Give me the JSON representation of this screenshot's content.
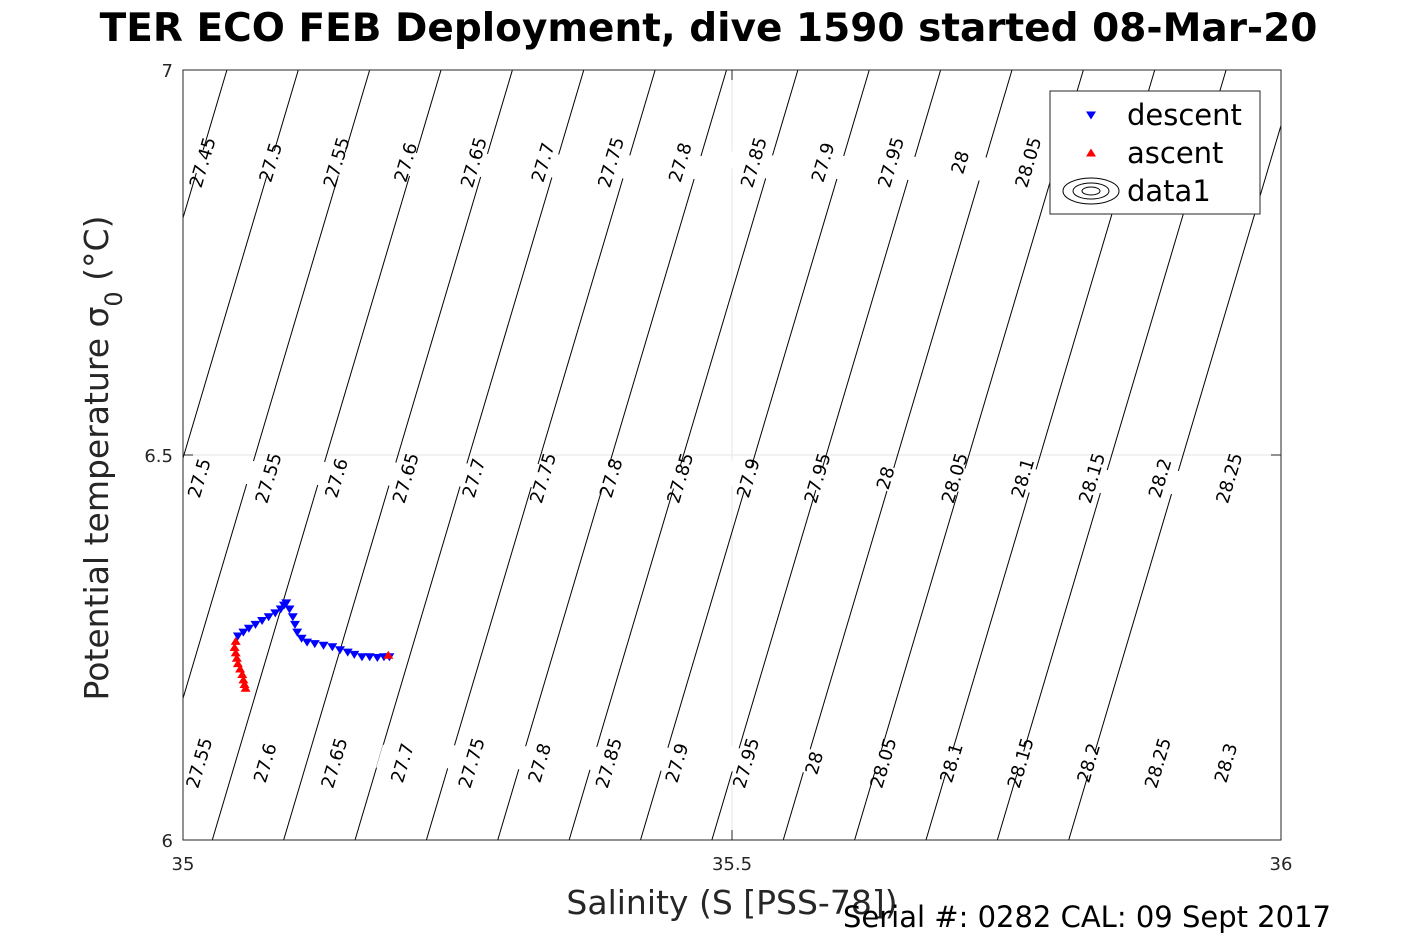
{
  "chart_data": {
    "type": "scatter",
    "title": "TER ECO FEB Deployment, dive 1590 started 08-Mar-20",
    "xlabel": "Salinity (S [PSS-78])",
    "ylabel": "Potential temperature σ",
    "ylabel_sub": "0",
    "ylabel_unit": "(°C)",
    "xlim": [
      35,
      36
    ],
    "ylim": [
      6,
      7
    ],
    "xticks": [
      "35",
      "35.5",
      "36"
    ],
    "yticks": [
      "6",
      "6.5",
      "7"
    ],
    "grid": true,
    "legend": {
      "position": "top-right",
      "entries": [
        "descent",
        "ascent",
        "data1"
      ]
    },
    "colors": {
      "descent": "#0000ff",
      "ascent": "#ff0000",
      "contour": "#000000"
    },
    "isopycnals": {
      "slope": 4.8,
      "start_salinity_at_7C": [
        34.98,
        35.04,
        35.105,
        35.17,
        35.235,
        35.3,
        35.365,
        35.43,
        35.495,
        35.56,
        35.625,
        35.69,
        35.755,
        35.82,
        35.885,
        35.95,
        36.015
      ]
    },
    "contour_labels": [
      {
        "text": "27.45",
        "s": 35.018,
        "t": 6.88
      },
      {
        "text": "27.5",
        "s": 35.08,
        "t": 6.88
      },
      {
        "text": "27.55",
        "s": 35.14,
        "t": 6.88
      },
      {
        "text": "27.6",
        "s": 35.203,
        "t": 6.88
      },
      {
        "text": "27.65",
        "s": 35.265,
        "t": 6.88
      },
      {
        "text": "27.7",
        "s": 35.328,
        "t": 6.88
      },
      {
        "text": "27.75",
        "s": 35.39,
        "t": 6.88
      },
      {
        "text": "27.8",
        "s": 35.453,
        "t": 6.88
      },
      {
        "text": "27.85",
        "s": 35.52,
        "t": 6.88
      },
      {
        "text": "27.9",
        "s": 35.583,
        "t": 6.88
      },
      {
        "text": "27.95",
        "s": 35.645,
        "t": 6.88
      },
      {
        "text": "28",
        "s": 35.708,
        "t": 6.88
      },
      {
        "text": "28.05",
        "s": 35.77,
        "t": 6.88
      },
      {
        "text": "27.5",
        "s": 35.015,
        "t": 6.47
      },
      {
        "text": "27.55",
        "s": 35.078,
        "t": 6.47
      },
      {
        "text": "27.6",
        "s": 35.14,
        "t": 6.47
      },
      {
        "text": "27.65",
        "s": 35.203,
        "t": 6.47
      },
      {
        "text": "27.7",
        "s": 35.265,
        "t": 6.47
      },
      {
        "text": "27.75",
        "s": 35.328,
        "t": 6.47
      },
      {
        "text": "27.8",
        "s": 35.39,
        "t": 6.47
      },
      {
        "text": "27.85",
        "s": 35.453,
        "t": 6.47
      },
      {
        "text": "27.9",
        "s": 35.515,
        "t": 6.47
      },
      {
        "text": "27.95",
        "s": 35.578,
        "t": 6.47
      },
      {
        "text": "28",
        "s": 35.64,
        "t": 6.47
      },
      {
        "text": "28.05",
        "s": 35.703,
        "t": 6.47
      },
      {
        "text": "28.1",
        "s": 35.765,
        "t": 6.47
      },
      {
        "text": "28.15",
        "s": 35.828,
        "t": 6.47
      },
      {
        "text": "28.2",
        "s": 35.89,
        "t": 6.47
      },
      {
        "text": "28.25",
        "s": 35.953,
        "t": 6.47
      },
      {
        "text": "27.55",
        "s": 35.015,
        "t": 6.1
      },
      {
        "text": "27.6",
        "s": 35.075,
        "t": 6.1
      },
      {
        "text": "27.65",
        "s": 35.138,
        "t": 6.1
      },
      {
        "text": "27.7",
        "s": 35.2,
        "t": 6.1
      },
      {
        "text": "27.75",
        "s": 35.263,
        "t": 6.1
      },
      {
        "text": "27.8",
        "s": 35.325,
        "t": 6.1
      },
      {
        "text": "27.85",
        "s": 35.388,
        "t": 6.1
      },
      {
        "text": "27.9",
        "s": 35.45,
        "t": 6.1
      },
      {
        "text": "27.95",
        "s": 35.513,
        "t": 6.1
      },
      {
        "text": "28",
        "s": 35.575,
        "t": 6.1
      },
      {
        "text": "28.05",
        "s": 35.638,
        "t": 6.1
      },
      {
        "text": "28.1",
        "s": 35.7,
        "t": 6.1
      },
      {
        "text": "28.15",
        "s": 35.763,
        "t": 6.1
      },
      {
        "text": "28.2",
        "s": 35.825,
        "t": 6.1
      },
      {
        "text": "28.25",
        "s": 35.888,
        "t": 6.1
      },
      {
        "text": "28.3",
        "s": 35.95,
        "t": 6.1
      }
    ],
    "series": [
      {
        "name": "descent",
        "marker": "triangle-down",
        "points": [
          [
            35.05,
            6.265
          ],
          [
            35.055,
            6.27
          ],
          [
            35.06,
            6.275
          ],
          [
            35.066,
            6.28
          ],
          [
            35.072,
            6.285
          ],
          [
            35.078,
            6.29
          ],
          [
            35.084,
            6.295
          ],
          [
            35.089,
            6.3
          ],
          [
            35.092,
            6.305
          ],
          [
            35.094,
            6.308
          ],
          [
            35.097,
            6.3
          ],
          [
            35.1,
            6.29
          ],
          [
            35.102,
            6.28
          ],
          [
            35.104,
            6.27
          ],
          [
            35.108,
            6.262
          ],
          [
            35.113,
            6.257
          ],
          [
            35.12,
            6.255
          ],
          [
            35.128,
            6.253
          ],
          [
            35.136,
            6.251
          ],
          [
            35.143,
            6.247
          ],
          [
            35.15,
            6.244
          ],
          [
            35.156,
            6.241
          ],
          [
            35.163,
            6.238
          ],
          [
            35.17,
            6.238
          ],
          [
            35.177,
            6.237
          ],
          [
            35.183,
            6.238
          ],
          [
            35.188,
            6.238
          ]
        ]
      },
      {
        "name": "ascent",
        "marker": "triangle-up",
        "points": [
          [
            35.048,
            6.258
          ],
          [
            35.047,
            6.25
          ],
          [
            35.048,
            6.243
          ],
          [
            35.049,
            6.236
          ],
          [
            35.05,
            6.229
          ],
          [
            35.052,
            6.222
          ],
          [
            35.054,
            6.215
          ],
          [
            35.055,
            6.208
          ],
          [
            35.056,
            6.202
          ],
          [
            35.057,
            6.197
          ],
          [
            35.187,
            6.24
          ]
        ]
      }
    ],
    "footer": "Serial #: 0282  CAL: 09 Sept 2017"
  }
}
